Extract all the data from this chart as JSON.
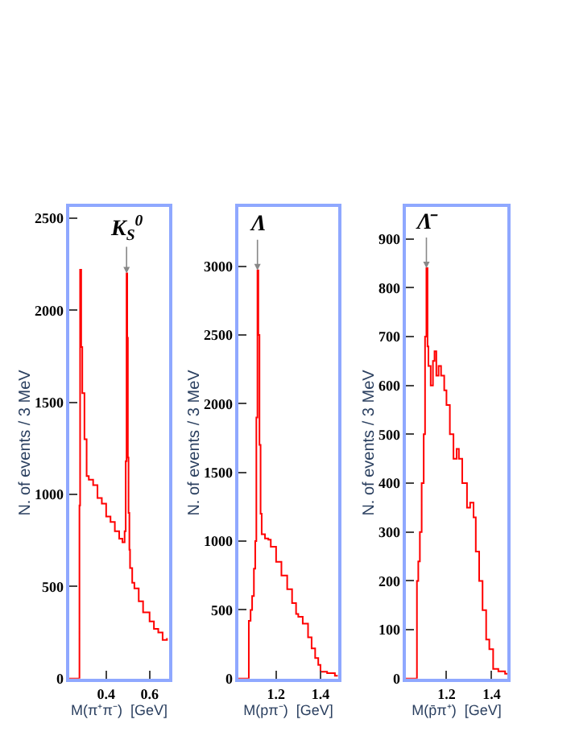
{
  "chart_data": [
    {
      "type": "step",
      "xlabel": "M(π⁺π⁻)  [GeV]",
      "ylabel": "N. of events / 3 MeV",
      "xlim": [
        0.23,
        0.69
      ],
      "xticks": [
        0.4,
        0.6
      ],
      "ylim": [
        0,
        2560
      ],
      "yticks": [
        0,
        500,
        1000,
        1500,
        2000,
        2500
      ],
      "series": [
        {
          "color": "#ff0000",
          "x": [
            0.23,
            0.274,
            0.277,
            0.28,
            0.285,
            0.29,
            0.3,
            0.31,
            0.32,
            0.34,
            0.36,
            0.38,
            0.4,
            0.42,
            0.44,
            0.46,
            0.475,
            0.485,
            0.49,
            0.494,
            0.497,
            0.5,
            0.503,
            0.507,
            0.51,
            0.52,
            0.53,
            0.55,
            0.57,
            0.6,
            0.62,
            0.64,
            0.66,
            0.68
          ],
          "values": [
            0,
            0,
            940,
            2220,
            1800,
            1550,
            1300,
            1100,
            1080,
            1050,
            980,
            950,
            880,
            850,
            800,
            760,
            740,
            800,
            1180,
            2200,
            1850,
            1200,
            900,
            700,
            600,
            520,
            490,
            420,
            360,
            310,
            270,
            250,
            210,
            220
          ]
        }
      ],
      "annotations": [
        {
          "text": "K$_{S}$$^{0}$",
          "x": 0.494,
          "y": 2200
        }
      ]
    },
    {
      "type": "step",
      "xlabel": "M(pπ⁻)  [GeV]",
      "ylabel": "N. of events / 3 MeV",
      "xlim": [
        1.03,
        1.48
      ],
      "xticks": [
        1.2,
        1.4
      ],
      "ylim": [
        0,
        3430
      ],
      "yticks": [
        0,
        500,
        1000,
        1500,
        2000,
        2500,
        3000
      ],
      "series": [
        {
          "color": "#ff0000",
          "x": [
            1.03,
            1.074,
            1.077,
            1.085,
            1.092,
            1.1,
            1.106,
            1.111,
            1.116,
            1.12,
            1.125,
            1.13,
            1.135,
            1.15,
            1.165,
            1.176,
            1.2,
            1.224,
            1.25,
            1.272,
            1.29,
            1.3,
            1.32,
            1.344,
            1.36,
            1.376,
            1.39,
            1.4,
            1.43,
            1.465,
            1.478
          ],
          "values": [
            0,
            0,
            420,
            500,
            600,
            800,
            1000,
            1900,
            2970,
            2500,
            1700,
            1200,
            1050,
            1020,
            1010,
            960,
            850,
            750,
            650,
            550,
            470,
            450,
            400,
            300,
            220,
            150,
            100,
            50,
            40,
            20,
            20
          ]
        }
      ],
      "annotations": [
        {
          "text": "Λ",
          "x": 1.116,
          "y": 2970
        }
      ]
    },
    {
      "type": "step",
      "xlabel": "M(p̄π⁺)  [GeV]",
      "ylabel": "N. of events / 3 MeV",
      "xlim": [
        1.02,
        1.47
      ],
      "xticks": [
        1.2,
        1.4
      ],
      "ylim": [
        0,
        965
      ],
      "yticks": [
        0,
        100,
        200,
        300,
        400,
        500,
        600,
        700,
        800,
        900
      ],
      "series": [
        {
          "color": "#ff0000",
          "x": [
            1.02,
            1.066,
            1.069,
            1.075,
            1.082,
            1.09,
            1.099,
            1.105,
            1.111,
            1.116,
            1.12,
            1.13,
            1.14,
            1.147,
            1.155,
            1.165,
            1.176,
            1.19,
            1.2,
            1.215,
            1.231,
            1.245,
            1.255,
            1.27,
            1.291,
            1.305,
            1.32,
            1.33,
            1.345,
            1.36,
            1.376,
            1.39,
            1.407,
            1.43,
            1.46,
            1.47
          ],
          "values": [
            0,
            0,
            200,
            240,
            300,
            400,
            500,
            700,
            840,
            680,
            640,
            600,
            650,
            670,
            620,
            640,
            620,
            590,
            560,
            500,
            450,
            470,
            450,
            400,
            350,
            360,
            330,
            260,
            200,
            140,
            80,
            60,
            20,
            15,
            10,
            10
          ]
        }
      ],
      "annotations": [
        {
          "text": "Λ̄",
          "x": 1.111,
          "y": 840
        }
      ]
    }
  ]
}
